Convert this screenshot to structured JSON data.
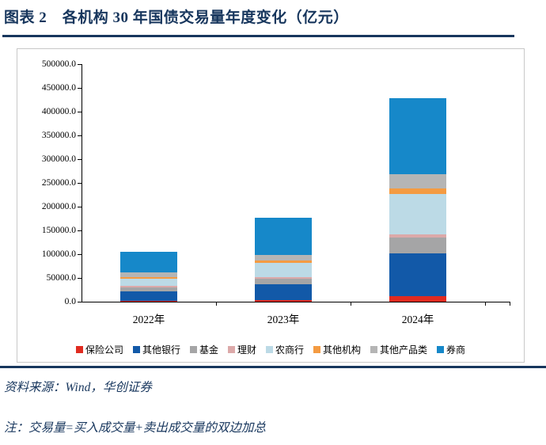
{
  "header": {
    "title": "图表 2　各机构 30 年国债交易量年度变化（亿元）"
  },
  "footer": {
    "source": "资料来源：Wind，华创证券",
    "note": "注：交易量=买入成交量+卖出成交量的双边加总"
  },
  "colors": {
    "accent_navy": "#17365D",
    "chart_border": "#C8C8C8",
    "axis": "#000000"
  },
  "chart_data": {
    "type": "bar",
    "stacked": true,
    "title": "各机构30年国债交易量年度变化（亿元）",
    "categories": [
      "2022年",
      "2023年",
      "2024年"
    ],
    "series": [
      {
        "name": "保险公司",
        "color": "#E02B20",
        "values": [
          1500,
          3000,
          12000
        ]
      },
      {
        "name": "其他银行",
        "color": "#1259A8",
        "values": [
          21000,
          34000,
          90000
        ]
      },
      {
        "name": "基金",
        "color": "#A5A5A6",
        "values": [
          7500,
          11000,
          33000
        ]
      },
      {
        "name": "理财",
        "color": "#DCA9A9",
        "values": [
          3000,
          4000,
          7000
        ]
      },
      {
        "name": "农商行",
        "color": "#BCDAE6",
        "values": [
          15000,
          29000,
          85000
        ]
      },
      {
        "name": "其他机构",
        "color": "#F49B42",
        "values": [
          4000,
          5000,
          12000
        ]
      },
      {
        "name": "其他产品类",
        "color": "#B5B5B5",
        "values": [
          9500,
          12000,
          30000
        ]
      },
      {
        "name": "券商",
        "color": "#1688C9",
        "values": [
          43000,
          79000,
          160000
        ]
      }
    ],
    "totals": [
      104500,
      177000,
      429000
    ],
    "xlabel": "",
    "ylabel": "",
    "ylim": [
      0,
      500000
    ],
    "y_tick_step": 50000,
    "y_tick_decimals": 1,
    "grid": false,
    "legend_position": "bottom"
  }
}
